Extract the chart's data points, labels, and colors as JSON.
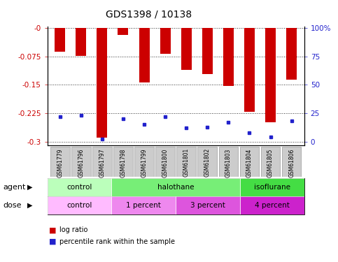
{
  "title": "GDS1398 / 10138",
  "samples": [
    "GSM61779",
    "GSM61796",
    "GSM61797",
    "GSM61798",
    "GSM61799",
    "GSM61800",
    "GSM61801",
    "GSM61802",
    "GSM61803",
    "GSM61804",
    "GSM61805",
    "GSM61806"
  ],
  "log_ratio": [
    -0.062,
    -0.074,
    -0.29,
    -0.018,
    -0.143,
    -0.068,
    -0.11,
    -0.122,
    -0.153,
    -0.222,
    -0.248,
    -0.137
  ],
  "percentile_values": [
    22,
    23,
    2,
    20,
    15,
    22,
    12,
    13,
    17,
    8,
    4,
    18
  ],
  "ylim": [
    -0.31,
    0.005
  ],
  "yticks": [
    0,
    -0.075,
    -0.15,
    -0.225,
    -0.3
  ],
  "ytick_labels": [
    "-0",
    "-0.075",
    "-0.15",
    "-0.225",
    "-0.3"
  ],
  "right_pcts": [
    100,
    75,
    50,
    25,
    0
  ],
  "right_pct_labels": [
    "100%",
    "75",
    "50",
    "25",
    "0"
  ],
  "bar_color": "#cc0000",
  "pct_color": "#2222cc",
  "bar_width": 0.5,
  "agent_groups": [
    {
      "label": "control",
      "start": 0,
      "end": 3,
      "color": "#bbffbb"
    },
    {
      "label": "halothane",
      "start": 3,
      "end": 9,
      "color": "#77ee77"
    },
    {
      "label": "isoflurane",
      "start": 9,
      "end": 12,
      "color": "#44dd44"
    }
  ],
  "dose_groups": [
    {
      "label": "control",
      "start": 0,
      "end": 3,
      "color": "#ffbbff"
    },
    {
      "label": "1 percent",
      "start": 3,
      "end": 6,
      "color": "#ee88ee"
    },
    {
      "label": "3 percent",
      "start": 6,
      "end": 9,
      "color": "#dd55dd"
    },
    {
      "label": "4 percent",
      "start": 9,
      "end": 12,
      "color": "#cc22cc"
    }
  ],
  "legend_items": [
    {
      "label": "log ratio",
      "color": "#cc0000"
    },
    {
      "label": "percentile rank within the sample",
      "color": "#2222cc"
    }
  ],
  "agent_label": "agent",
  "dose_label": "dose",
  "left_axis_color": "#cc0000",
  "right_axis_color": "#2222cc",
  "title_color": "#333333",
  "grid_color": "#333333",
  "xlabel_bg": "#cccccc",
  "xlabel_border": "#999999"
}
